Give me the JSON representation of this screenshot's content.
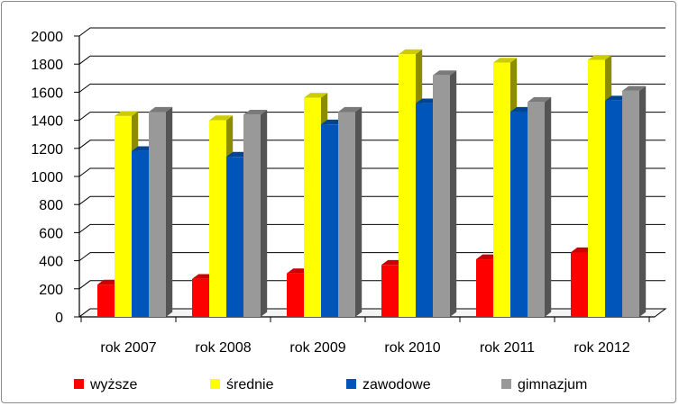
{
  "chart_data": {
    "type": "bar",
    "style": "3d-clustered",
    "title": "",
    "xlabel": "",
    "ylabel": "",
    "ylim": [
      0,
      2000
    ],
    "ytick_step": 200,
    "yticks": [
      "0",
      "200",
      "400",
      "600",
      "800",
      "1000",
      "1200",
      "1400",
      "1600",
      "1800",
      "2000"
    ],
    "categories": [
      "rok 2007",
      "rok 2008",
      "rok 2009",
      "rok 2010",
      "rok 2011",
      "rok 2012"
    ],
    "series": [
      {
        "name": "wyższe",
        "color": "#ff0000",
        "values": [
          230,
          270,
          310,
          370,
          410,
          460
        ]
      },
      {
        "name": "średnie",
        "color": "#ffff00",
        "values": [
          1430,
          1400,
          1560,
          1870,
          1810,
          1830
        ]
      },
      {
        "name": "zawodowe",
        "color": "#0055bb",
        "values": [
          1180,
          1140,
          1370,
          1520,
          1460,
          1540
        ]
      },
      {
        "name": "gimnazjum",
        "color": "#999999",
        "values": [
          1460,
          1440,
          1460,
          1720,
          1530,
          1610
        ]
      }
    ],
    "grid": true,
    "legend_position": "bottom"
  }
}
